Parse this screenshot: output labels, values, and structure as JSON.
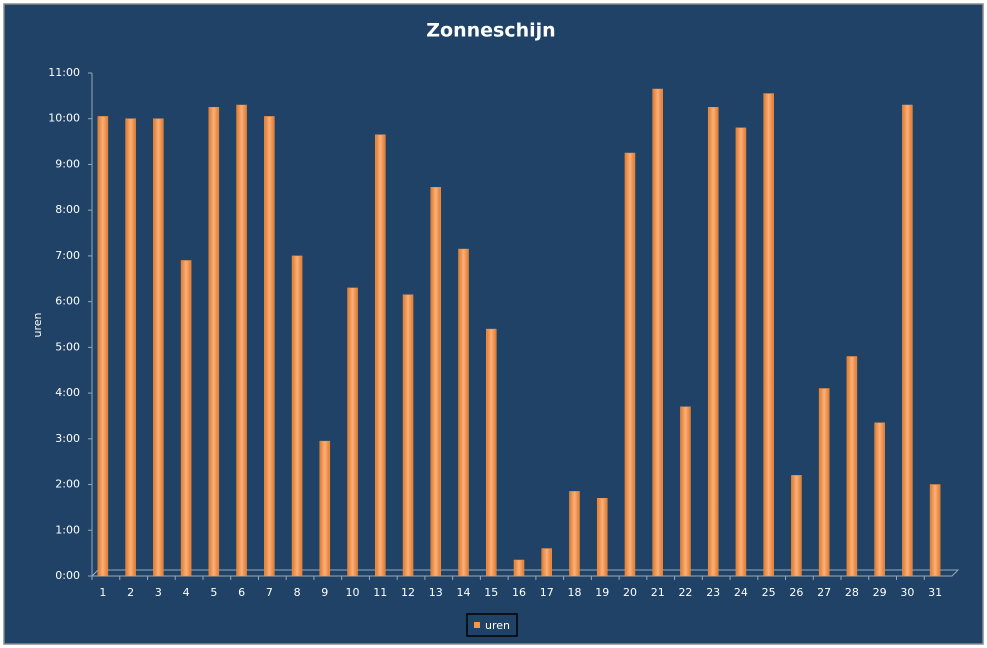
{
  "chart_data": {
    "type": "bar",
    "title": "Zonneschijn",
    "y_label": "uren",
    "categories": [
      "1",
      "2",
      "3",
      "4",
      "5",
      "6",
      "7",
      "8",
      "9",
      "10",
      "11",
      "12",
      "13",
      "14",
      "15",
      "16",
      "17",
      "18",
      "19",
      "20",
      "21",
      "22",
      "23",
      "24",
      "25",
      "26",
      "27",
      "28",
      "29",
      "30",
      "31"
    ],
    "series": [
      {
        "name": "uren",
        "color": "#f79646",
        "values": [
          10.05,
          10.0,
          10.0,
          6.9,
          10.25,
          10.3,
          10.05,
          7.0,
          2.95,
          6.3,
          9.65,
          6.15,
          8.5,
          7.15,
          5.4,
          0.35,
          0.6,
          1.85,
          1.7,
          9.25,
          10.65,
          3.7,
          10.25,
          9.8,
          10.55,
          2.2,
          4.1,
          4.8,
          3.35,
          10.3,
          2.0
        ]
      }
    ],
    "ylim": [
      0,
      11
    ],
    "yticks": [
      {
        "value": 0,
        "label": "0:00"
      },
      {
        "value": 1,
        "label": "1:00"
      },
      {
        "value": 2,
        "label": "2:00"
      },
      {
        "value": 3,
        "label": "3:00"
      },
      {
        "value": 4,
        "label": "4:00"
      },
      {
        "value": 5,
        "label": "5:00"
      },
      {
        "value": 6,
        "label": "6:00"
      },
      {
        "value": 7,
        "label": "7:00"
      },
      {
        "value": 8,
        "label": "8:00"
      },
      {
        "value": 9,
        "label": "9:00"
      },
      {
        "value": 10,
        "label": "10:00"
      },
      {
        "value": 11,
        "label": "11:00"
      }
    ],
    "legend": "bottom"
  }
}
